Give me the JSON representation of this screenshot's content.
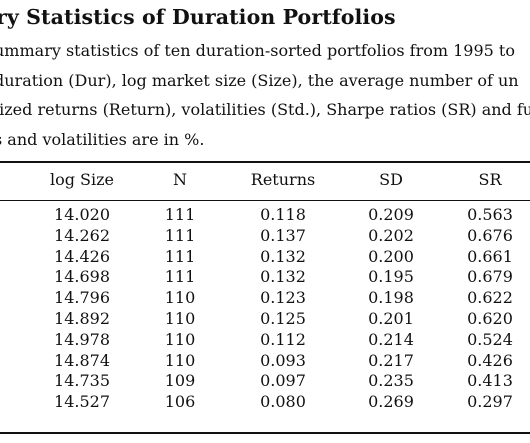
{
  "title": "ry Statistics of Duration Portfolios",
  "caption_lines": [
    "ummary statistics of ten duration-sorted portfolios from 1995 to",
    "duration (Dur), log market size (Size), the average number of un",
    "lized returns (Return), volatilities (Std.), Sharpe ratios (SR) and fu",
    "s and volatilities are in %."
  ],
  "table": {
    "headers": [
      "log Size",
      "N",
      "Returns",
      "SD",
      "SR"
    ],
    "rows": [
      [
        "14.020",
        "111",
        "0.118",
        "0.209",
        "0.563"
      ],
      [
        "14.262",
        "111",
        "0.137",
        "0.202",
        "0.676"
      ],
      [
        "14.426",
        "111",
        "0.132",
        "0.200",
        "0.661"
      ],
      [
        "14.698",
        "111",
        "0.132",
        "0.195",
        "0.679"
      ],
      [
        "14.796",
        "110",
        "0.123",
        "0.198",
        "0.622"
      ],
      [
        "14.892",
        "110",
        "0.125",
        "0.201",
        "0.620"
      ],
      [
        "14.978",
        "110",
        "0.112",
        "0.214",
        "0.524"
      ],
      [
        "14.874",
        "110",
        "0.093",
        "0.217",
        "0.426"
      ],
      [
        "14.735",
        "109",
        "0.097",
        "0.235",
        "0.413"
      ],
      [
        "14.527",
        "106",
        "0.080",
        "0.269",
        "0.297"
      ]
    ]
  }
}
